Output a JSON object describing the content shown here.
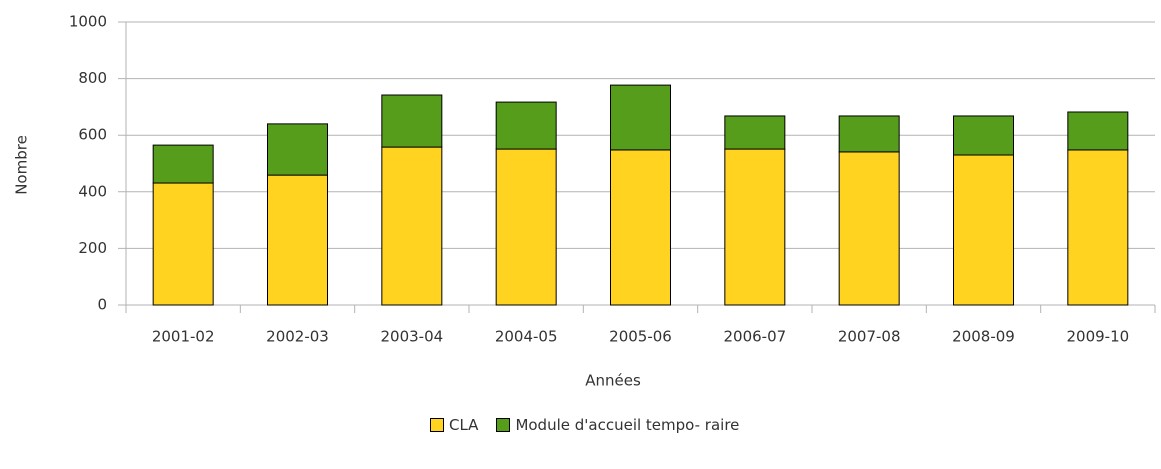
{
  "chart_data": {
    "type": "stacked_bar",
    "x_label": "Années",
    "y_label": "Nombre",
    "categories": [
      "2001-02",
      "2002-03",
      "2003-04",
      "2004-05",
      "2005-06",
      "2006-07",
      "2007-08",
      "2008-09",
      "2009-10"
    ],
    "series": [
      {
        "name": "CLA",
        "color": "#ffd320",
        "values": [
          431,
          459,
          558,
          551,
          548,
          551,
          541,
          530,
          548
        ]
      },
      {
        "name": "Module d'accueil tempo- raire",
        "color": "#579d1c",
        "values": [
          134,
          181,
          184,
          166,
          229,
          117,
          127,
          138,
          134
        ]
      }
    ],
    "ylim": [
      0,
      1000
    ],
    "yticks": [
      0,
      200,
      400,
      600,
      800,
      1000
    ],
    "grid": true
  }
}
